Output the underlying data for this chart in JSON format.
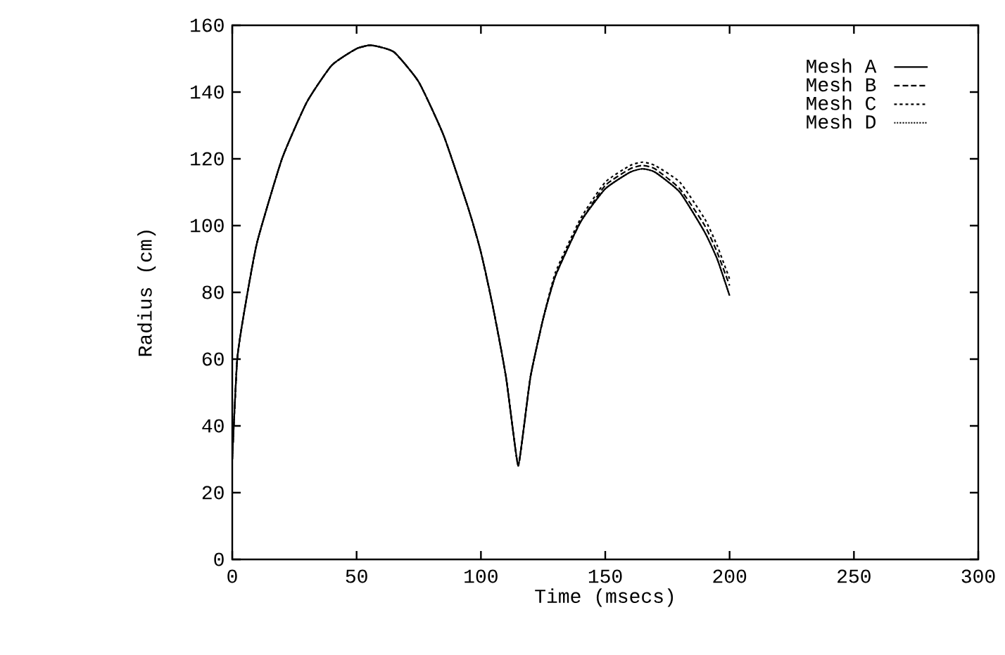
{
  "chart_data": {
    "type": "line",
    "xlabel": "Time (msecs)",
    "ylabel": "Radius (cm)",
    "xlim": [
      0,
      300
    ],
    "ylim": [
      0,
      160
    ],
    "xticks": [
      0,
      50,
      100,
      150,
      200,
      250,
      300
    ],
    "yticks": [
      0,
      20,
      40,
      60,
      80,
      100,
      120,
      140,
      160
    ],
    "legend": "top right",
    "grid": false,
    "marker": "none",
    "x": [
      0,
      2,
      5,
      10,
      20,
      30,
      40,
      50,
      56,
      65,
      75,
      85,
      95,
      100,
      105,
      110,
      113,
      115,
      117,
      120,
      125,
      130,
      140,
      150,
      160,
      165,
      170,
      180,
      190,
      195,
      200
    ],
    "series": [
      {
        "name": "Mesh A",
        "color": "#000000",
        "line_style": "solid",
        "values": [
          30,
          60,
          75,
          95,
          120,
          137,
          148,
          153,
          154,
          152,
          143,
          127,
          105,
          92,
          75,
          55,
          38,
          28,
          38,
          55,
          72,
          85,
          101,
          111,
          116,
          117,
          116,
          110,
          98,
          90,
          79
        ]
      },
      {
        "name": "Mesh B",
        "color": "#000000",
        "line_style": "dashed",
        "values": [
          30,
          60,
          75,
          95,
          120,
          137,
          148,
          153,
          154,
          152,
          143,
          127,
          105,
          92,
          75,
          55,
          38,
          28,
          38,
          55,
          72,
          85,
          101,
          112,
          117,
          118,
          117,
          111,
          100,
          92,
          82
        ]
      },
      {
        "name": "Mesh C",
        "color": "#000000",
        "line_style": "dotted",
        "values": [
          30,
          60,
          75,
          95,
          120,
          137,
          148,
          153,
          154,
          152,
          143,
          127,
          105,
          92,
          75,
          55,
          38,
          28,
          38,
          55,
          72,
          86,
          102,
          113,
          118,
          119,
          118,
          113,
          102,
          94,
          84
        ]
      },
      {
        "name": "Mesh D",
        "color": "#000000",
        "line_style": "densely dotted",
        "values": [
          30,
          60,
          75,
          95,
          120,
          137,
          148,
          153,
          154,
          152,
          143,
          127,
          105,
          92,
          75,
          55,
          38,
          28,
          38,
          55,
          72,
          85,
          101,
          111,
          116,
          117,
          116,
          110,
          98,
          90,
          79
        ]
      }
    ]
  }
}
